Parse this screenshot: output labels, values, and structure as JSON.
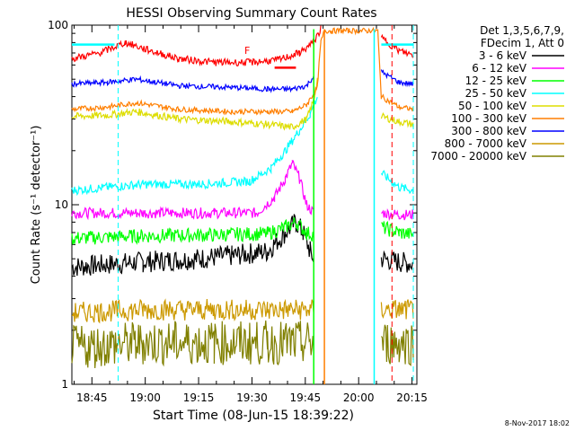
{
  "chart_data": {
    "type": "line",
    "title": "HESSI Observing Summary Count Rates",
    "xlabel": "Start Time (08-Jun-15 18:39:22)",
    "ylabel": "Count Rate (s⁻¹ detector⁻¹)",
    "yscale": "log",
    "ylim": [
      1,
      100
    ],
    "xlim_minutes_since_start": [
      0,
      97
    ],
    "x_tick_labels": [
      "18:45",
      "19:00",
      "19:15",
      "19:30",
      "19:45",
      "20:00",
      "20:15"
    ],
    "y_tick_labels": [
      "1",
      "10",
      "100"
    ],
    "legend_header": [
      "Det 1,3,5,6,7,9,",
      "FDecim 1, Att 0"
    ],
    "legend_position": "right",
    "flag_label": "F",
    "timestamp": "8-Nov-2017 18:02",
    "series": [
      {
        "name": "3 - 6 keV",
        "color": "#000000",
        "points": [
          [
            0,
            4.5
          ],
          [
            20,
            4.8
          ],
          [
            35,
            5.0
          ],
          [
            45,
            5.2
          ],
          [
            55,
            5.5
          ],
          [
            60,
            7.0
          ],
          [
            63,
            8.0
          ],
          [
            65,
            7.0
          ],
          [
            67,
            5.5
          ],
          [
            68,
            5.0
          ],
          [
            80,
            null
          ],
          [
            87,
            5.0
          ],
          [
            92,
            4.8
          ],
          [
            96,
            4.7
          ]
        ]
      },
      {
        "name": "6 - 12 keV",
        "color": "#ff00ff",
        "points": [
          [
            0,
            9.0
          ],
          [
            20,
            9.0
          ],
          [
            40,
            9.0
          ],
          [
            52,
            9.0
          ],
          [
            57,
            11.0
          ],
          [
            60,
            14.0
          ],
          [
            62,
            17.0
          ],
          [
            64,
            14.0
          ],
          [
            66,
            10.0
          ],
          [
            68,
            9.0
          ],
          [
            80,
            null
          ],
          [
            87,
            9.0
          ],
          [
            92,
            8.8
          ],
          [
            96,
            8.8
          ]
        ]
      },
      {
        "name": "12 - 25 keV",
        "color": "#00ff00",
        "points": [
          [
            0,
            6.5
          ],
          [
            20,
            6.7
          ],
          [
            40,
            6.8
          ],
          [
            55,
            6.9
          ],
          [
            60,
            7.5
          ],
          [
            63,
            8.0
          ],
          [
            66,
            7.0
          ],
          [
            68,
            6.8
          ],
          [
            80,
            null
          ],
          [
            87,
            7.5
          ],
          [
            92,
            7.0
          ],
          [
            96,
            6.8
          ]
        ]
      },
      {
        "name": "25 - 50 keV",
        "color": "#00ffff",
        "points": [
          [
            0,
            12.0
          ],
          [
            10,
            12.5
          ],
          [
            20,
            13.0
          ],
          [
            35,
            13.0
          ],
          [
            50,
            13.5
          ],
          [
            56,
            16.0
          ],
          [
            60,
            20.0
          ],
          [
            64,
            26.0
          ],
          [
            67,
            32.0
          ],
          [
            69,
            40.0
          ],
          [
            80,
            null
          ],
          [
            87,
            15.0
          ],
          [
            92,
            12.5
          ],
          [
            96,
            12.0
          ]
        ]
      },
      {
        "name": "50 - 100 keV",
        "color": "#dddd00",
        "points": [
          [
            0,
            31.0
          ],
          [
            10,
            31.5
          ],
          [
            18,
            33.0
          ],
          [
            30,
            30.0
          ],
          [
            45,
            29.0
          ],
          [
            55,
            28.0
          ],
          [
            62,
            27.0
          ],
          [
            66,
            30.0
          ],
          [
            68,
            38.0
          ],
          [
            69,
            50.0
          ],
          [
            80,
            null
          ],
          [
            87,
            31.0
          ],
          [
            92,
            29.0
          ],
          [
            96,
            28.0
          ]
        ]
      },
      {
        "name": "100 - 300 keV",
        "color": "#ff7f00",
        "points": [
          [
            0,
            34.0
          ],
          [
            10,
            35.0
          ],
          [
            18,
            37.0
          ],
          [
            30,
            34.0
          ],
          [
            45,
            33.0
          ],
          [
            55,
            33.0
          ],
          [
            62,
            33.0
          ],
          [
            66,
            36.0
          ],
          [
            69,
            45.0
          ],
          [
            70,
            80.0
          ],
          [
            71,
            93.0
          ],
          [
            73,
            93.0
          ],
          [
            78,
            93.0
          ],
          [
            84,
            93.0
          ],
          [
            86,
            93.0
          ],
          [
            87,
            40.0
          ],
          [
            92,
            35.0
          ],
          [
            96,
            34.0
          ]
        ]
      },
      {
        "name": "300 - 800 keV",
        "color": "#0000ff",
        "points": [
          [
            0,
            47.0
          ],
          [
            10,
            48.0
          ],
          [
            18,
            50.0
          ],
          [
            30,
            46.0
          ],
          [
            45,
            45.0
          ],
          [
            55,
            44.0
          ],
          [
            62,
            44.0
          ],
          [
            66,
            46.0
          ],
          [
            68,
            52.0
          ],
          [
            80,
            null
          ],
          [
            87,
            55.0
          ],
          [
            92,
            48.0
          ],
          [
            96,
            47.0
          ]
        ]
      },
      {
        "name": "800 - 7000 keV",
        "color": "#cc9900",
        "points": [
          [
            0,
            2.5
          ],
          [
            20,
            2.6
          ],
          [
            40,
            2.6
          ],
          [
            55,
            2.6
          ],
          [
            68,
            2.6
          ],
          [
            80,
            null
          ],
          [
            87,
            2.6
          ],
          [
            92,
            2.6
          ],
          [
            96,
            2.6
          ]
        ]
      },
      {
        "name": "7000 - 20000 keV",
        "color": "#808000",
        "points": [
          [
            0,
            1.6
          ],
          [
            20,
            1.7
          ],
          [
            40,
            1.7
          ],
          [
            55,
            1.7
          ],
          [
            68,
            1.7
          ],
          [
            80,
            null
          ],
          [
            87,
            1.7
          ],
          [
            92,
            1.7
          ],
          [
            96,
            1.7
          ]
        ]
      }
    ],
    "red_top_trace": {
      "color": "#ff0000",
      "points": [
        [
          0,
          65
        ],
        [
          8,
          70
        ],
        [
          15,
          80
        ],
        [
          22,
          72
        ],
        [
          30,
          65
        ],
        [
          40,
          62
        ],
        [
          50,
          62
        ],
        [
          58,
          64
        ],
        [
          64,
          70
        ],
        [
          68,
          80
        ],
        [
          70,
          95
        ],
        [
          80,
          null
        ],
        [
          87,
          85
        ],
        [
          92,
          72
        ],
        [
          96,
          68
        ]
      ]
    },
    "cyan_top_line": {
      "color": "#00ffff",
      "segments": [
        [
          [
            0,
            78
          ],
          [
            12,
            78
          ]
        ],
        [
          [
            87,
            78
          ],
          [
            96,
            78
          ]
        ]
      ]
    },
    "red_flag_bar": {
      "color": "#ff0000",
      "x_range": [
        57,
        63
      ],
      "y": 58
    },
    "dashed_lines": [
      {
        "x": 13,
        "color": "#00ffff"
      },
      {
        "x": 90,
        "color": "#ff0000"
      },
      {
        "x": 96,
        "color": "#00ffff"
      }
    ],
    "solid_lines": [
      {
        "x": 68,
        "color": "#00ff00"
      },
      {
        "x": 71,
        "color": "#ff7f00"
      },
      {
        "x": 85,
        "color": "#00ffff"
      }
    ]
  }
}
